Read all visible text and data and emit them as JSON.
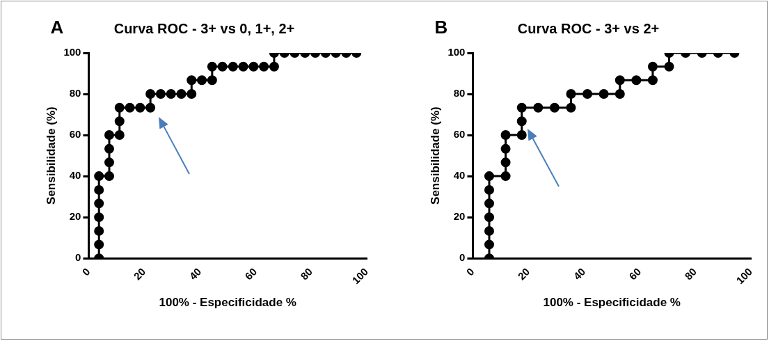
{
  "chart_data": [
    {
      "type": "line",
      "title": "Curva ROC - 3+ vs 0, 1+, 2+",
      "xlabel": "100% - Especificidade %",
      "ylabel": "Sensibilidade (%)",
      "annotations": [
        "A"
      ],
      "x": [
        3.7,
        3.7,
        3.7,
        3.7,
        3.7,
        3.7,
        3.7,
        7.4,
        7.4,
        7.4,
        7.4,
        11.1,
        11.1,
        11.1,
        14.8,
        18.5,
        22.2,
        22.2,
        25.9,
        29.6,
        33.3,
        37.0,
        37.0,
        40.7,
        44.4,
        44.4,
        48.1,
        51.9,
        55.6,
        59.3,
        63.0,
        66.7,
        66.7,
        70.4,
        74.1,
        77.8,
        81.5,
        85.2,
        88.9,
        92.6,
        96.3
      ],
      "values": [
        0,
        6.7,
        13.3,
        20,
        26.7,
        33.3,
        40,
        40,
        46.7,
        53.3,
        60,
        60,
        66.7,
        73.3,
        73.3,
        73.3,
        73.3,
        80,
        80,
        80,
        80,
        80,
        86.7,
        86.7,
        86.7,
        93.3,
        93.3,
        93.3,
        93.3,
        93.3,
        93.3,
        93.3,
        100,
        100,
        100,
        100,
        100,
        100,
        100,
        100,
        100
      ],
      "color": "#000000",
      "marker": "circle",
      "line_style": "solid",
      "xlim": [
        0,
        100
      ],
      "xticks": [
        0,
        20,
        40,
        60,
        80,
        100
      ],
      "ylim": [
        0,
        100
      ],
      "yticks": [
        0,
        20,
        40,
        60,
        80,
        100
      ],
      "grid": false
    },
    {
      "type": "line",
      "title": "Curva ROC - 3+ vs 2+",
      "xlabel": "100% - Especificidade %",
      "ylabel": "Sensibilidade (%)",
      "annotations": [
        "B"
      ],
      "x": [
        5.9,
        5.9,
        5.9,
        5.9,
        5.9,
        5.9,
        5.9,
        11.8,
        11.8,
        11.8,
        11.8,
        17.6,
        17.6,
        17.6,
        23.5,
        29.4,
        35.3,
        35.3,
        41.2,
        47.1,
        52.9,
        52.9,
        58.8,
        64.7,
        64.7,
        70.6,
        70.6,
        76.5,
        82.4,
        88.2,
        94.1
      ],
      "values": [
        0,
        6.7,
        13.3,
        20,
        26.7,
        33.3,
        40,
        40,
        46.7,
        53.3,
        60,
        60,
        66.7,
        73.3,
        73.3,
        73.3,
        73.3,
        80,
        80,
        80,
        80,
        86.7,
        86.7,
        86.7,
        93.3,
        93.3,
        100,
        100,
        100,
        100,
        100
      ],
      "color": "#000000",
      "marker": "circle",
      "line_style": "solid",
      "xlim": [
        0,
        100
      ],
      "xticks": [
        0,
        20,
        40,
        60,
        80,
        100
      ],
      "ylim": [
        0,
        100
      ],
      "yticks": [
        0,
        20,
        40,
        60,
        80,
        100
      ],
      "grid": false
    }
  ]
}
